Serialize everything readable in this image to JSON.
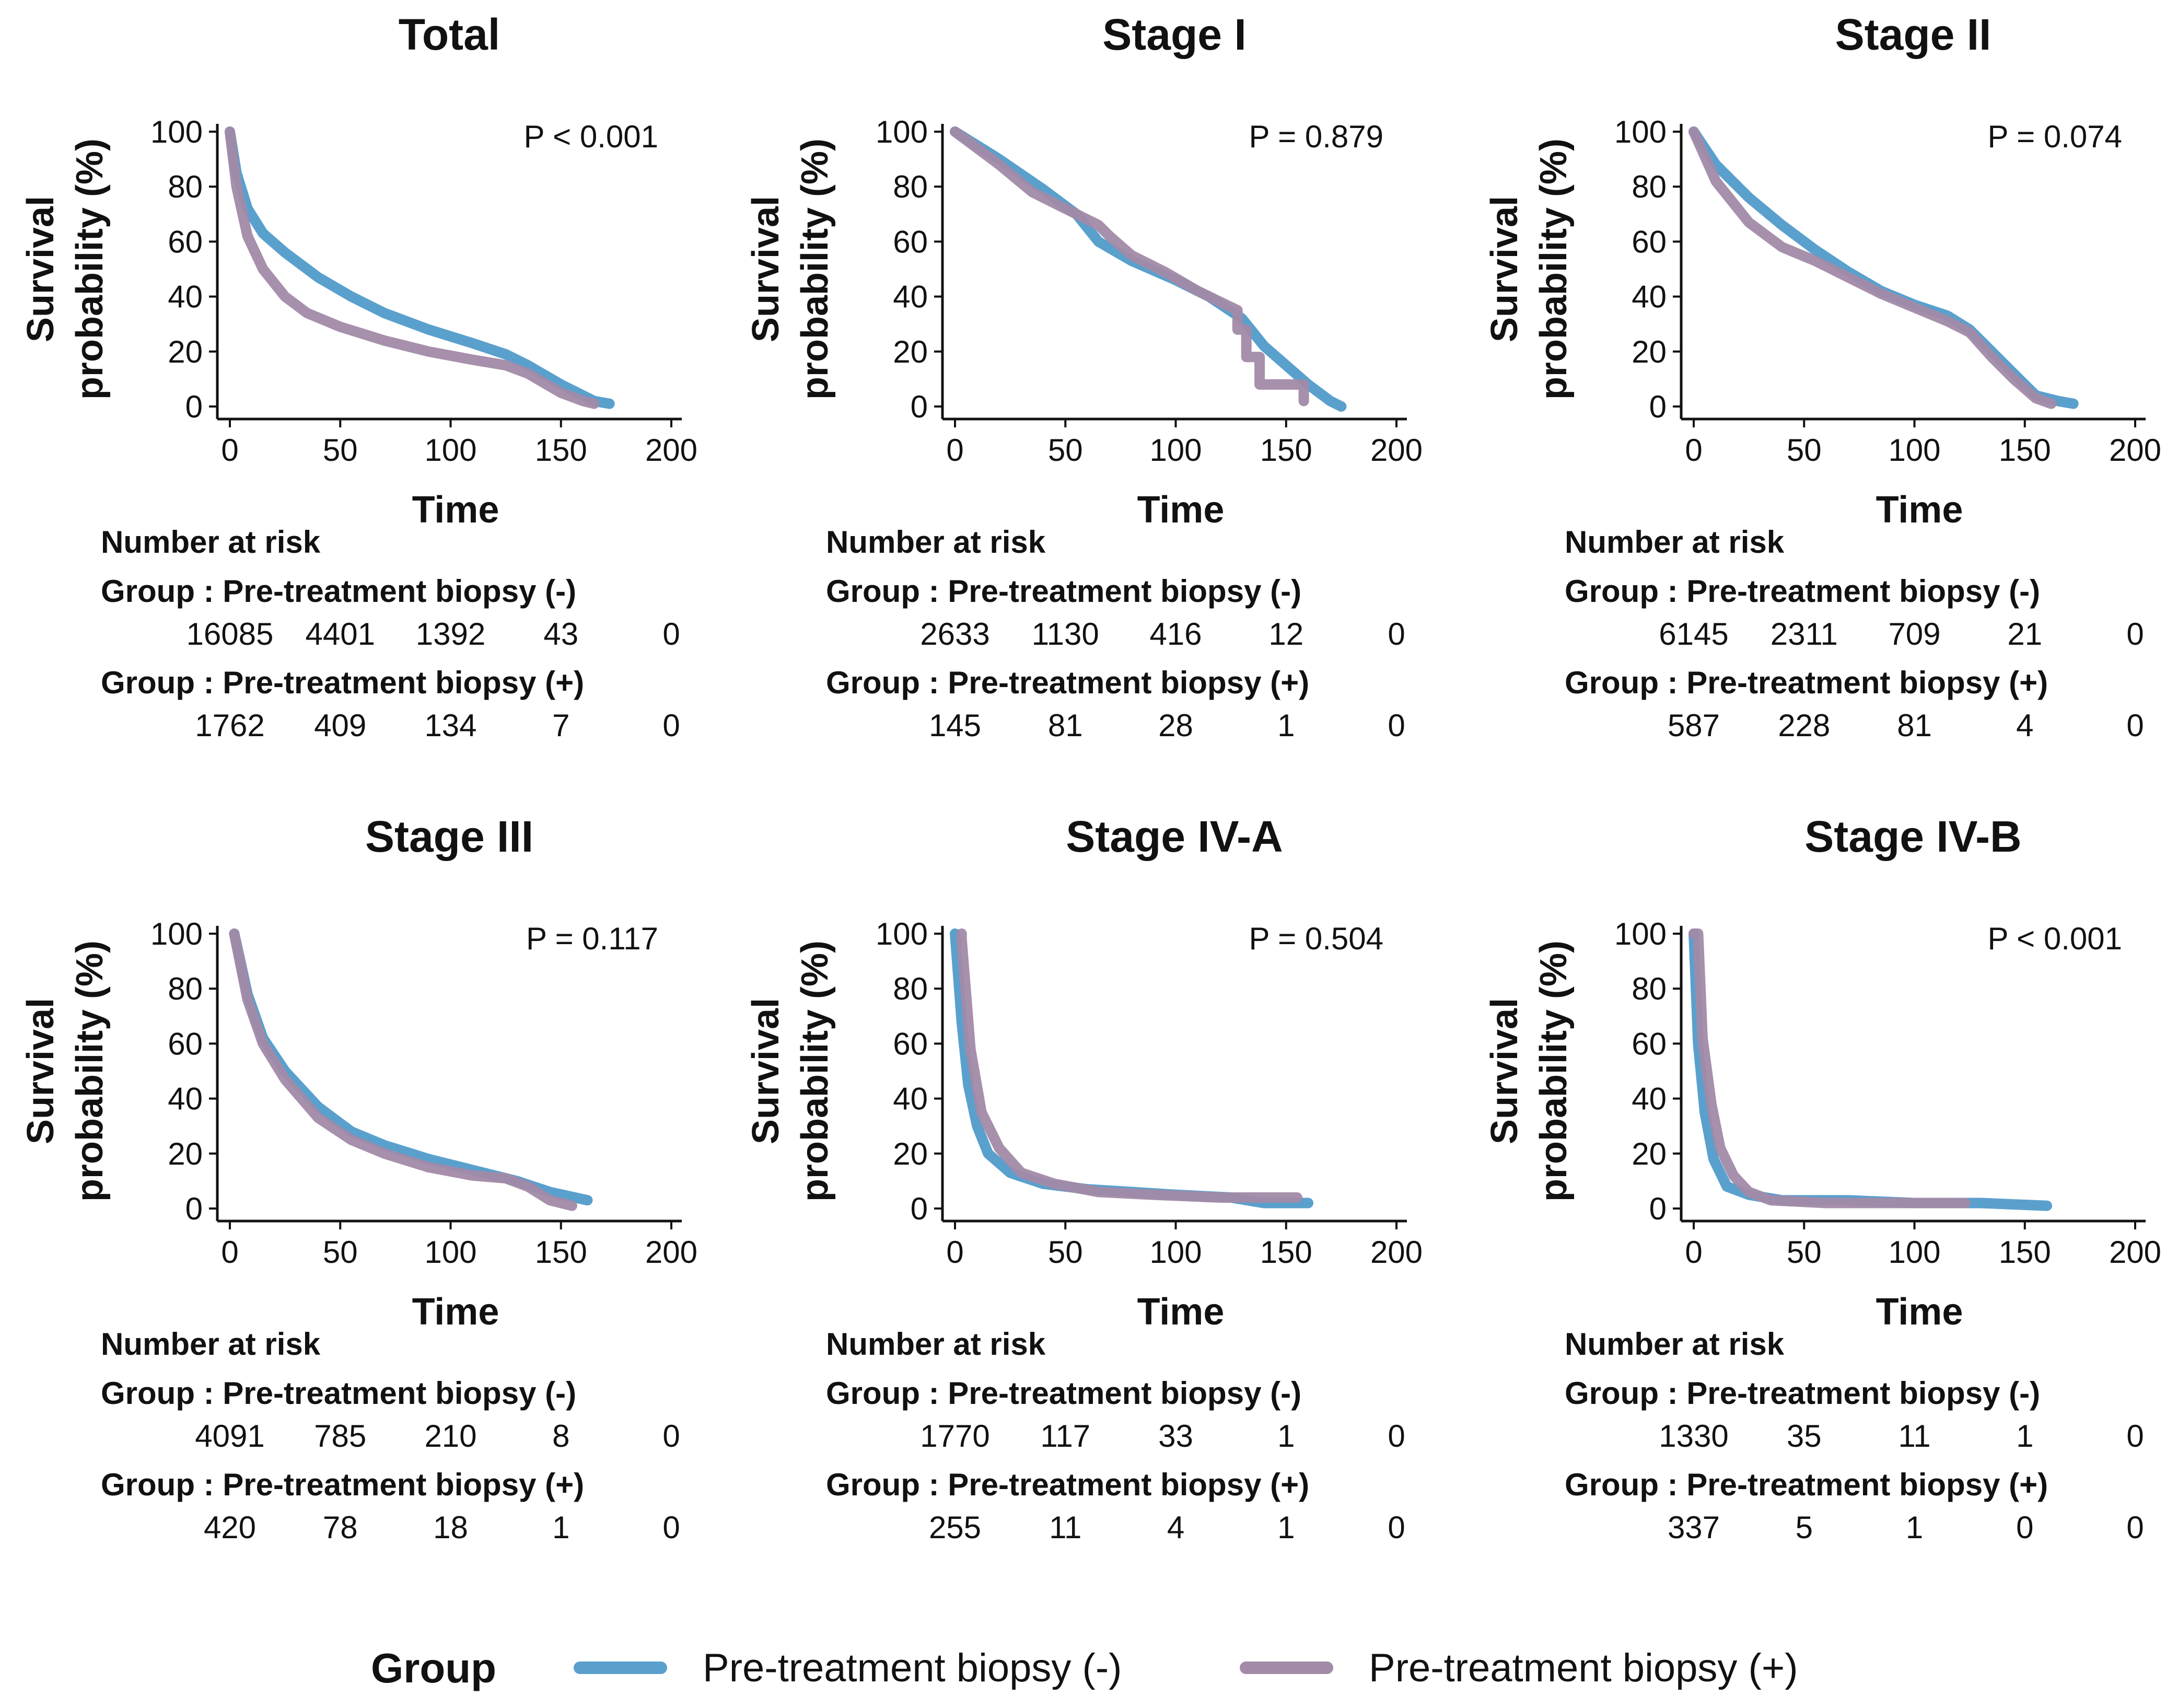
{
  "chart_data": [
    {
      "type": "line",
      "title": "Total",
      "xlabel": "Time",
      "ylabel": [
        "Survival",
        "probability (%)"
      ],
      "xlim": [
        0,
        200
      ],
      "ylim": [
        0,
        100
      ],
      "xticks": [
        0,
        50,
        100,
        150,
        200
      ],
      "yticks": [
        0,
        20,
        40,
        60,
        80,
        100
      ],
      "pvalue": "P < 0.001",
      "series": [
        {
          "name": "Pre-treatment biopsy (-)",
          "x": [
            0,
            3,
            8,
            15,
            25,
            40,
            55,
            70,
            90,
            110,
            125,
            135,
            150,
            165,
            172
          ],
          "y": [
            100,
            85,
            72,
            63,
            56,
            47,
            40,
            34,
            28,
            23,
            19,
            15,
            8,
            2,
            1
          ]
        },
        {
          "name": "Pre-treatment biopsy (+)",
          "x": [
            0,
            3,
            8,
            15,
            25,
            35,
            50,
            70,
            90,
            110,
            125,
            135,
            150,
            160,
            165
          ],
          "y": [
            100,
            80,
            62,
            50,
            40,
            34,
            29,
            24,
            20,
            17,
            15,
            12,
            5,
            2,
            1
          ]
        }
      ],
      "risk_table": {
        "header": "Number at risk",
        "rows": [
          {
            "label": "Group : Pre-treatment biopsy (-)",
            "values": [
              "16085",
              "4401",
              "1392",
              "43",
              "0"
            ]
          },
          {
            "label": "Group : Pre-treatment biopsy (+)",
            "values": [
              "1762",
              "409",
              "134",
              "7",
              "0"
            ]
          }
        ]
      }
    },
    {
      "type": "line",
      "title": "Stage I",
      "xlabel": "Time",
      "ylabel": [
        "Survival",
        "probability (%)"
      ],
      "xlim": [
        0,
        200
      ],
      "ylim": [
        0,
        100
      ],
      "xticks": [
        0,
        50,
        100,
        150,
        200
      ],
      "yticks": [
        0,
        20,
        40,
        60,
        80,
        100
      ],
      "pvalue": "P = 0.879",
      "series": [
        {
          "name": "Pre-treatment biopsy (-)",
          "x": [
            0,
            20,
            40,
            55,
            65,
            80,
            100,
            115,
            130,
            140,
            150,
            160,
            170,
            175
          ],
          "y": [
            100,
            90,
            79,
            70,
            60,
            53,
            46,
            40,
            32,
            22,
            15,
            8,
            2,
            0
          ]
        },
        {
          "name": "Pre-treatment biopsy (+)",
          "x": [
            0,
            20,
            35,
            50,
            65,
            70,
            80,
            95,
            110,
            128,
            128,
            132,
            132,
            138,
            138,
            158,
            158
          ],
          "y": [
            100,
            88,
            78,
            72,
            66,
            62,
            55,
            49,
            42,
            35,
            28,
            28,
            18,
            18,
            8,
            8,
            2
          ]
        }
      ],
      "risk_table": {
        "header": "Number at risk",
        "rows": [
          {
            "label": "Group : Pre-treatment biopsy (-)",
            "values": [
              "2633",
              "1130",
              "416",
              "12",
              "0"
            ]
          },
          {
            "label": "Group : Pre-treatment biopsy (+)",
            "values": [
              "145",
              "81",
              "28",
              "1",
              "0"
            ]
          }
        ]
      }
    },
    {
      "type": "line",
      "title": "Stage II",
      "xlabel": "Time",
      "ylabel": [
        "Survival",
        "probability (%)"
      ],
      "xlim": [
        0,
        200
      ],
      "ylim": [
        0,
        100
      ],
      "xticks": [
        0,
        50,
        100,
        150,
        200
      ],
      "yticks": [
        0,
        20,
        40,
        60,
        80,
        100
      ],
      "pvalue": "P = 0.074",
      "series": [
        {
          "name": "Pre-treatment biopsy (-)",
          "x": [
            0,
            10,
            25,
            40,
            55,
            70,
            85,
            100,
            115,
            125,
            135,
            145,
            155,
            165,
            172
          ],
          "y": [
            100,
            88,
            76,
            66,
            57,
            49,
            42,
            37,
            33,
            28,
            20,
            12,
            4,
            2,
            1
          ]
        },
        {
          "name": "Pre-treatment biopsy (+)",
          "x": [
            0,
            10,
            25,
            40,
            55,
            70,
            85,
            100,
            115,
            125,
            135,
            145,
            155,
            162
          ],
          "y": [
            100,
            82,
            67,
            58,
            53,
            47,
            41,
            36,
            31,
            27,
            18,
            10,
            3,
            1
          ]
        }
      ],
      "risk_table": {
        "header": "Number at risk",
        "rows": [
          {
            "label": "Group : Pre-treatment biopsy (-)",
            "values": [
              "6145",
              "2311",
              "709",
              "21",
              "0"
            ]
          },
          {
            "label": "Group : Pre-treatment biopsy (+)",
            "values": [
              "587",
              "228",
              "81",
              "4",
              "0"
            ]
          }
        ]
      }
    },
    {
      "type": "line",
      "title": "Stage III",
      "xlabel": "Time",
      "ylabel": [
        "Survival",
        "probability (%)"
      ],
      "xlim": [
        0,
        200
      ],
      "ylim": [
        0,
        100
      ],
      "xticks": [
        0,
        50,
        100,
        150,
        200
      ],
      "yticks": [
        0,
        20,
        40,
        60,
        80,
        100
      ],
      "pvalue": "P = 0.117",
      "series": [
        {
          "name": "Pre-treatment biopsy (-)",
          "x": [
            2,
            8,
            15,
            25,
            40,
            55,
            70,
            90,
            110,
            130,
            145,
            162
          ],
          "y": [
            100,
            78,
            62,
            50,
            37,
            28,
            23,
            18,
            14,
            10,
            6,
            3
          ]
        },
        {
          "name": "Pre-treatment biopsy (+)",
          "x": [
            2,
            8,
            15,
            25,
            40,
            55,
            70,
            90,
            110,
            125,
            135,
            145,
            155
          ],
          "y": [
            100,
            76,
            60,
            47,
            33,
            25,
            20,
            15,
            12,
            11,
            8,
            3,
            1
          ]
        }
      ],
      "risk_table": {
        "header": "Number at risk",
        "rows": [
          {
            "label": "Group : Pre-treatment biopsy (-)",
            "values": [
              "4091",
              "785",
              "210",
              "8",
              "0"
            ]
          },
          {
            "label": "Group : Pre-treatment biopsy (+)",
            "values": [
              "420",
              "78",
              "18",
              "1",
              "0"
            ]
          }
        ]
      }
    },
    {
      "type": "line",
      "title": "Stage IV-A",
      "xlabel": "Time",
      "ylabel": [
        "Survival",
        "probability (%)"
      ],
      "xlim": [
        0,
        200
      ],
      "ylim": [
        0,
        100
      ],
      "xticks": [
        0,
        50,
        100,
        150,
        200
      ],
      "yticks": [
        0,
        20,
        40,
        60,
        80,
        100
      ],
      "pvalue": "P = 0.504",
      "series": [
        {
          "name": "Pre-treatment biopsy (-)",
          "x": [
            0,
            3,
            6,
            10,
            15,
            25,
            40,
            60,
            80,
            100,
            125,
            140,
            160
          ],
          "y": [
            100,
            68,
            45,
            30,
            20,
            13,
            9,
            7,
            6,
            5,
            4,
            2,
            2
          ]
        },
        {
          "name": "Pre-treatment biopsy (+)",
          "x": [
            3,
            3,
            7,
            12,
            20,
            30,
            45,
            65,
            90,
            120,
            155
          ],
          "y": [
            100,
            98,
            58,
            35,
            22,
            13,
            9,
            6,
            5,
            4,
            4
          ]
        }
      ],
      "risk_table": {
        "header": "Number at risk",
        "rows": [
          {
            "label": "Group : Pre-treatment biopsy (-)",
            "values": [
              "1770",
              "117",
              "33",
              "1",
              "0"
            ]
          },
          {
            "label": "Group : Pre-treatment biopsy (+)",
            "values": [
              "255",
              "11",
              "4",
              "1",
              "0"
            ]
          }
        ]
      }
    },
    {
      "type": "line",
      "title": "Stage IV-B",
      "xlabel": "Time",
      "ylabel": [
        "Survival",
        "probability (%)"
      ],
      "xlim": [
        0,
        200
      ],
      "ylim": [
        0,
        100
      ],
      "xticks": [
        0,
        50,
        100,
        150,
        200
      ],
      "yticks": [
        0,
        20,
        40,
        60,
        80,
        100
      ],
      "pvalue": "P < 0.001",
      "series": [
        {
          "name": "Pre-treatment biopsy (-)",
          "x": [
            0,
            2,
            5,
            9,
            15,
            25,
            40,
            70,
            100,
            130,
            160
          ],
          "y": [
            100,
            60,
            35,
            18,
            8,
            5,
            3,
            3,
            2,
            2,
            1
          ]
        },
        {
          "name": "Pre-treatment biopsy (+)",
          "x": [
            0,
            2,
            4,
            8,
            12,
            18,
            25,
            35,
            60,
            90,
            123
          ],
          "y": [
            100,
            100,
            62,
            38,
            22,
            12,
            6,
            3,
            2,
            2,
            2
          ]
        }
      ],
      "risk_table": {
        "header": "Number at risk",
        "rows": [
          {
            "label": "Group : Pre-treatment biopsy (-)",
            "values": [
              "1330",
              "35",
              "11",
              "1",
              "0"
            ]
          },
          {
            "label": "Group : Pre-treatment biopsy (+)",
            "values": [
              "337",
              "5",
              "1",
              "0",
              "0"
            ]
          }
        ]
      }
    }
  ],
  "legend": {
    "title": "Group",
    "items": [
      {
        "label": "Pre-treatment biopsy (-)",
        "color": "#5aa0cd"
      },
      {
        "label": "Pre-treatment biopsy (+)",
        "color": "#a28aa8"
      }
    ]
  }
}
